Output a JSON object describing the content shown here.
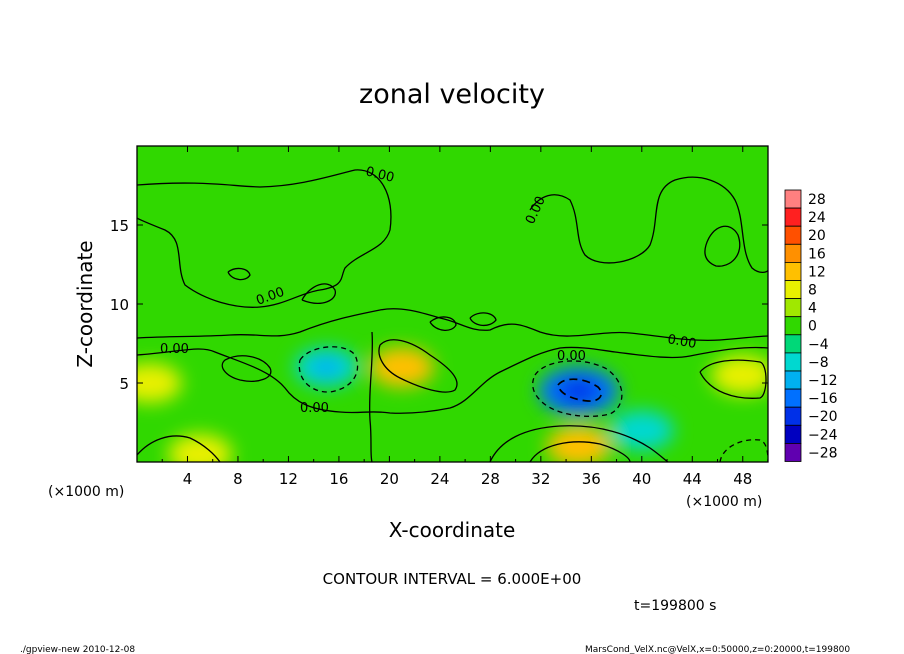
{
  "chart_data": {
    "type": "heatmap",
    "title": "zonal velocity",
    "xlabel": "X-coordinate",
    "ylabel": "Z-coordinate",
    "x_unit": "(×1000 m)",
    "z_unit": "(×1000 m)",
    "xlim": [
      0,
      50
    ],
    "ylim": [
      0,
      20
    ],
    "x_ticks": [
      4,
      8,
      12,
      16,
      20,
      24,
      28,
      32,
      36,
      40,
      44,
      48
    ],
    "y_ticks": [
      5,
      10,
      15
    ],
    "contour_interval_text": "CONTOUR INTERVAL = 6.000E+00",
    "time_text": "t=199800 s",
    "colorbar": {
      "levels": [
        28,
        24,
        20,
        16,
        12,
        8,
        4,
        0,
        -4,
        -8,
        -12,
        -16,
        -20,
        -24,
        -28
      ],
      "colors": [
        "#ff8080",
        "#ff2020",
        "#ff5000",
        "#ff9000",
        "#ffc000",
        "#e8f000",
        "#a0e800",
        "#30d800",
        "#00d878",
        "#00d8d0",
        "#00b0f0",
        "#0070ff",
        "#0030e8",
        "#0000c0",
        "#6000b0"
      ]
    },
    "contour_labels": [
      "0.00",
      "0.00",
      "0.00",
      "0.00",
      "0.00",
      "0.00",
      "0.00"
    ],
    "features": [
      {
        "kind": "max",
        "x": 21,
        "z": 6.0,
        "value": 10
      },
      {
        "kind": "max",
        "x": 1,
        "z": 5.0,
        "value": 8
      },
      {
        "kind": "max",
        "x": 48,
        "z": 5.5,
        "value": 8
      },
      {
        "kind": "max",
        "x": 35,
        "z": 1,
        "value": 10
      },
      {
        "kind": "max",
        "x": 5,
        "z": 0.5,
        "value": 6
      },
      {
        "kind": "min",
        "x": 15,
        "z": 6.0,
        "value": -10
      },
      {
        "kind": "min",
        "x": 35,
        "z": 4.5,
        "value": -16
      },
      {
        "kind": "min",
        "x": 40,
        "z": 2.0,
        "value": -7
      }
    ]
  },
  "footer": {
    "left": "./gpview-new   2010-12-08",
    "right": "MarsCond_VelX.nc@VelX,x=0:50000,z=0:20000,t=199800"
  }
}
